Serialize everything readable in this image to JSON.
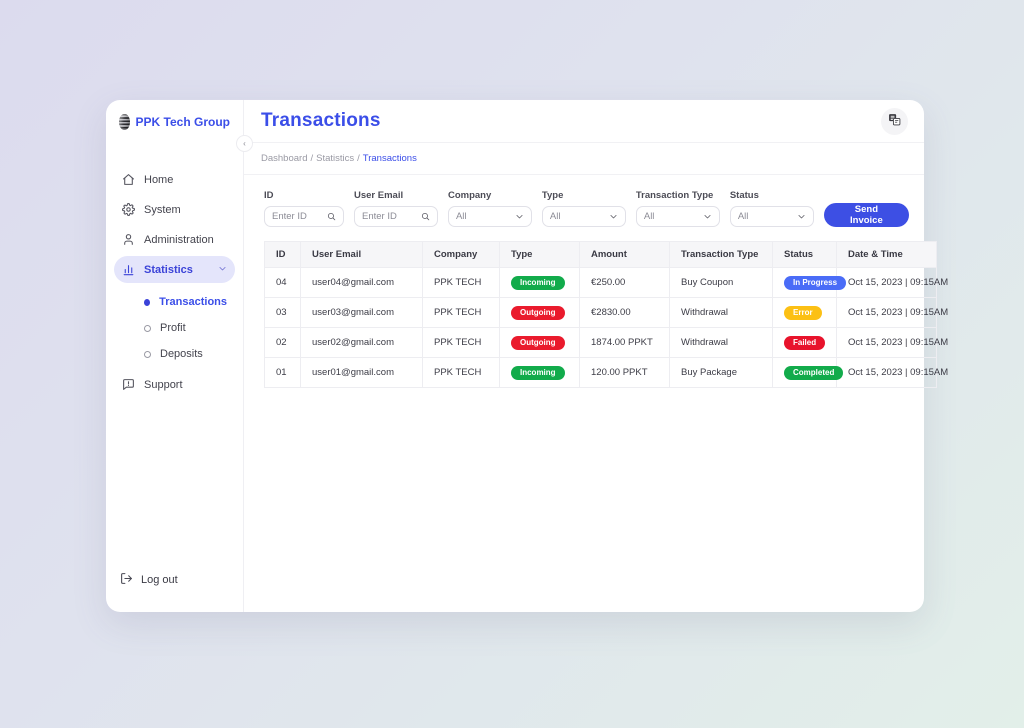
{
  "app": {
    "brand": "PPK Tech Group",
    "page_title": "Transactions",
    "breadcrumb": [
      {
        "label": "Dashboard",
        "active": false
      },
      {
        "label": "Statistics",
        "active": false
      },
      {
        "label": "Transactions",
        "active": true
      }
    ]
  },
  "sidebar": {
    "items": [
      {
        "label": "Home",
        "icon": "home-icon",
        "active": false
      },
      {
        "label": "System",
        "icon": "gear-icon",
        "active": false
      },
      {
        "label": "Administration",
        "icon": "person-icon",
        "active": false
      },
      {
        "label": "Statistics",
        "icon": "bar-chart-icon",
        "active": true,
        "expanded": true,
        "children": [
          {
            "label": "Transactions",
            "active": true
          },
          {
            "label": "Profit",
            "active": false
          },
          {
            "label": "Deposits",
            "active": false
          }
        ]
      },
      {
        "label": "Support",
        "icon": "help-bubble-icon",
        "active": false
      }
    ],
    "logout_label": "Log out"
  },
  "header": {
    "language_button_icon": "translate-icon",
    "collapse_icon": "chevron-left-icon"
  },
  "filters": {
    "fields": [
      {
        "label": "ID",
        "kind": "search",
        "placeholder": "Enter ID",
        "value": ""
      },
      {
        "label": "User Email",
        "kind": "search",
        "placeholder": "Enter ID",
        "value": ""
      },
      {
        "label": "Company",
        "kind": "select",
        "value": "All"
      },
      {
        "label": "Type",
        "kind": "select",
        "value": "All"
      },
      {
        "label": "Transaction Type",
        "kind": "select",
        "value": "All"
      },
      {
        "label": "Status",
        "kind": "select",
        "value": "All"
      }
    ],
    "send_invoice_label": "Send Invoice"
  },
  "table": {
    "columns": [
      "ID",
      "User Email",
      "Company",
      "Type",
      "Amount",
      "Transaction Type",
      "Status",
      "Date & Time"
    ],
    "rows": [
      {
        "id": "04",
        "email": "user04@gmail.com",
        "company": "PPK TECH",
        "type": "Incoming",
        "amount": "€250.00",
        "transaction_type": "Buy Coupon",
        "status": "In Progress",
        "datetime": "Oct 15, 2023 | 09:15AM"
      },
      {
        "id": "03",
        "email": "user03@gmail.com",
        "company": "PPK TECH",
        "type": "Outgoing",
        "amount": "€2830.00",
        "transaction_type": "Withdrawal",
        "status": "Error",
        "datetime": "Oct 15, 2023 | 09:15AM"
      },
      {
        "id": "02",
        "email": "user02@gmail.com",
        "company": "PPK TECH",
        "type": "Outgoing",
        "amount": "1874.00 PPKT",
        "transaction_type": "Withdrawal",
        "status": "Failed",
        "datetime": "Oct 15, 2023 | 09:15AM"
      },
      {
        "id": "01",
        "email": "user01@gmail.com",
        "company": "PPK TECH",
        "type": "Incoming",
        "amount": "120.00 PPKT",
        "transaction_type": "Buy Package",
        "status": "Completed",
        "datetime": "Oct 15, 2023 | 09:15AM"
      }
    ]
  },
  "colors": {
    "accent": "#3b4ee8",
    "active_pill_bg": "#e4e5fb",
    "badges": {
      "Incoming": "#12ab4b",
      "Outgoing": "#ea1b2d",
      "In Progress": "#4a6cf7",
      "Error": "#fcc014",
      "Failed": "#e8132c",
      "Completed": "#12ab4b"
    }
  }
}
